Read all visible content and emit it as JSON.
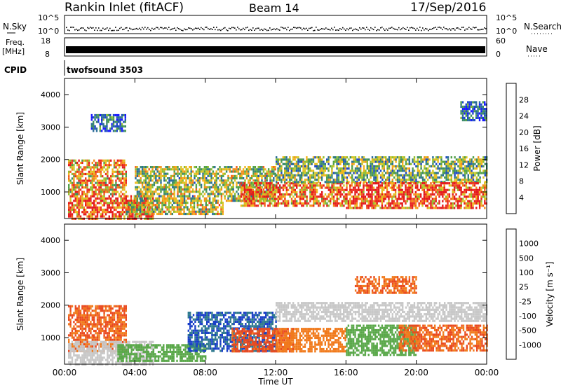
{
  "header": {
    "station": "Rankin Inlet (fitACF)",
    "beam": "Beam 14",
    "date": "17/Sep/2016"
  },
  "noise_panel": {
    "left_label": "N.Sky",
    "right_label": "N.Search",
    "left_ticks": [
      "10^5",
      "10^0"
    ],
    "right_ticks": [
      "10^5",
      "10^0"
    ]
  },
  "freq_panel": {
    "left_label_1": "Freq.",
    "left_label_2": "[MHz]",
    "left_ticks": [
      "18",
      "8"
    ],
    "right_label": "Nave",
    "right_ticks": [
      "60",
      "0"
    ]
  },
  "cpid_panel": {
    "label": "CPID",
    "value": "twofsound 3503"
  },
  "colors": {
    "power": [
      "#1a1aff",
      "#1e49c6",
      "#2a6d9a",
      "#3b8a6a",
      "#52a048",
      "#8fbf2e",
      "#d6c626",
      "#f3b619",
      "#f38f1a",
      "#f2601d",
      "#ee3020",
      "#e41a1c"
    ],
    "velocity": [
      "#1a3fc8",
      "#2a5fb0",
      "#2f7a8f",
      "#3b8c6a",
      "#5aa84a",
      "#c8c8c8",
      "#c8c8c8",
      "#f49a1a",
      "#f17a1c",
      "#ea4a1f",
      "#e41a1c"
    ]
  },
  "chart_data": [
    {
      "type": "heatmap",
      "title": "Power",
      "ylabel": "Slant Range [km]",
      "xlabel": "Time UT",
      "x_ticks": [
        "00:00",
        "04:00",
        "08:00",
        "12:00",
        "16:00",
        "20:00",
        "00:00"
      ],
      "xlim": [
        0,
        24
      ],
      "ylim": [
        180,
        4500
      ],
      "y_ticks": [
        1000,
        2000,
        3000,
        4000
      ],
      "colorbar": {
        "label": "Power [dB]",
        "ticks": [
          4,
          8,
          12,
          16,
          20,
          24,
          28
        ],
        "range": [
          0,
          30
        ]
      },
      "echo_regions": [
        {
          "t0": 0.2,
          "t1": 5.0,
          "r0": 200,
          "r1": 900,
          "level": 26
        },
        {
          "t0": 0.2,
          "t1": 3.5,
          "r0": 900,
          "r1": 2000,
          "level": 20
        },
        {
          "t0": 3.5,
          "t1": 9.0,
          "r0": 300,
          "r1": 700,
          "level": 16
        },
        {
          "t0": 4.0,
          "t1": 12.0,
          "r0": 700,
          "r1": 1800,
          "level": 14
        },
        {
          "t0": 10.0,
          "t1": 16.0,
          "r0": 600,
          "r1": 1300,
          "level": 24
        },
        {
          "t0": 12.0,
          "t1": 24.0,
          "r0": 1300,
          "r1": 2100,
          "level": 12
        },
        {
          "t0": 16.0,
          "t1": 24.0,
          "r0": 500,
          "r1": 1300,
          "level": 26
        },
        {
          "t0": 1.5,
          "t1": 3.5,
          "r0": 2900,
          "r1": 3400,
          "level": 6
        },
        {
          "t0": 22.5,
          "t1": 24.0,
          "r0": 3200,
          "r1": 3800,
          "level": 6
        }
      ]
    },
    {
      "type": "heatmap",
      "title": "Velocity",
      "ylabel": "Slant Range [km]",
      "xlabel": "Time UT",
      "x_ticks": [
        "00:00",
        "04:00",
        "08:00",
        "12:00",
        "16:00",
        "20:00",
        "00:00"
      ],
      "xlim": [
        0,
        24
      ],
      "ylim": [
        180,
        4500
      ],
      "y_ticks": [
        1000,
        2000,
        3000,
        4000
      ],
      "colorbar": {
        "label": "Velocity [m s⁻¹]",
        "ticks": [
          "1000",
          "500",
          "100",
          "25",
          "-25",
          "-100",
          "-500",
          "-1000"
        ]
      },
      "echo_regions": [
        {
          "t0": 0.2,
          "t1": 3.5,
          "r0": 600,
          "r1": 2000,
          "level": -300
        },
        {
          "t0": 0.2,
          "t1": 5.0,
          "r0": 200,
          "r1": 900,
          "level": 0
        },
        {
          "t0": 3.0,
          "t1": 8.0,
          "r0": 300,
          "r1": 800,
          "level": 150
        },
        {
          "t0": 7.0,
          "t1": 12.0,
          "r0": 600,
          "r1": 1800,
          "level": 700
        },
        {
          "t0": 9.5,
          "t1": 13.0,
          "r0": 600,
          "r1": 1300,
          "level": -400
        },
        {
          "t0": 12.0,
          "t1": 24.0,
          "r0": 1500,
          "r1": 2100,
          "level": 0
        },
        {
          "t0": 12.0,
          "t1": 16.0,
          "r0": 600,
          "r1": 1300,
          "level": -200
        },
        {
          "t0": 16.0,
          "t1": 20.0,
          "r0": 500,
          "r1": 1400,
          "level": 200
        },
        {
          "t0": 19.0,
          "t1": 24.0,
          "r0": 600,
          "r1": 1400,
          "level": -300
        },
        {
          "t0": 16.5,
          "t1": 20.0,
          "r0": 2400,
          "r1": 2900,
          "level": -300
        }
      ]
    }
  ]
}
